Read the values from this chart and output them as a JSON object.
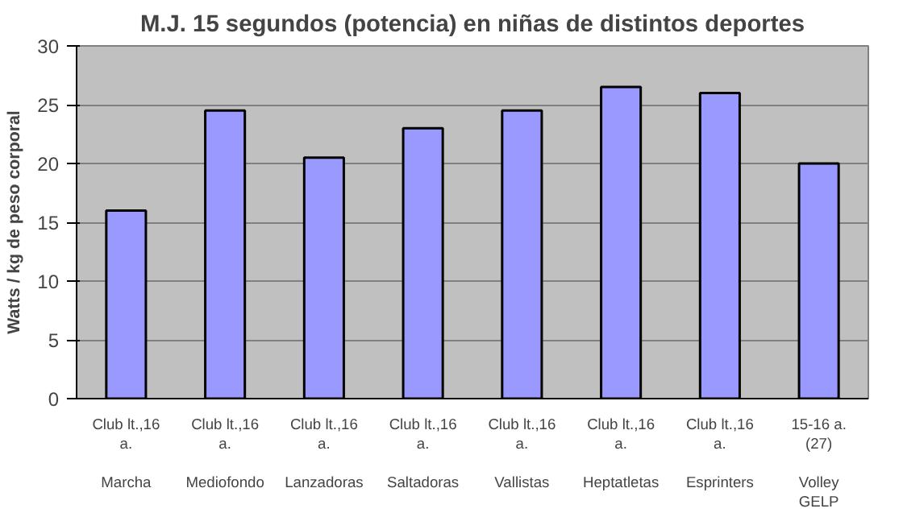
{
  "chart_data": {
    "type": "bar",
    "title": "M.J. 15 segundos (potencia) en niñas de distintos deportes",
    "ylabel": "Watts / kg de peso corporal",
    "categories": [
      "Club lt.,16\na.\n\nMarcha",
      "Club lt.,16\na.\n\nMediofondo",
      "Club lt.,16\na.\n\nLanzadoras",
      "Club lt.,16\na.\n\nSaltadoras",
      "Club lt.,16\na.\n\nVallistas",
      "Club lt.,16\na.\n\nHeptatletas",
      "Club lt.,16\na.\n\nEsprinters",
      "15-16 a.\n(27)\n\nVolley\nGELP"
    ],
    "values": [
      16,
      24.5,
      20.5,
      23,
      24.5,
      26.5,
      26,
      20
    ],
    "color": "#9999ff",
    "ylim": [
      0,
      30
    ],
    "yticks": [
      0,
      5,
      10,
      15,
      20,
      25,
      30
    ],
    "grid": "y"
  }
}
